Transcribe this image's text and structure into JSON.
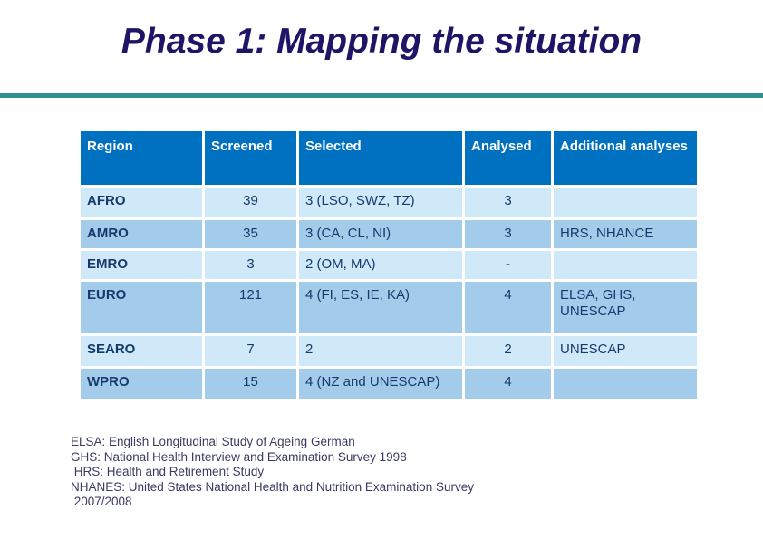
{
  "slide": {
    "title": "Phase 1: Mapping the situation"
  },
  "colors": {
    "title_navy": "#1d1667",
    "divider_teal": "#2e9191",
    "header_blue": "#0070c0",
    "header_text": "#ffffff",
    "row_light": "#cfe9f9",
    "row_dark": "#a2cce9",
    "body_text": "#173a6d",
    "footnote_text": "#3a3a63"
  },
  "table": {
    "headers": [
      "Region",
      "Screened",
      "Selected",
      "Analysed",
      "Additional analyses"
    ],
    "rows": [
      {
        "region": "AFRO",
        "screened": "39",
        "selected": "3 (LSO, SWZ, TZ)",
        "analysed": "3",
        "additional": ""
      },
      {
        "region": "AMRO",
        "screened": "35",
        "selected": "3 (CA, CL, NI)",
        "analysed": "3",
        "additional": "HRS, NHANCE"
      },
      {
        "region": "EMRO",
        "screened": "3",
        "selected": "2 (OM, MA)",
        "analysed": "-",
        "additional": ""
      },
      {
        "region": "EURO",
        "screened": "121",
        "selected": "4 (FI, ES, IE, KA)",
        "analysed": "4",
        "additional": "ELSA, GHS, UNESCAP"
      },
      {
        "region": "SEARO",
        "screened": "7",
        "selected": "2",
        "analysed": "2",
        "additional": "UNESCAP"
      },
      {
        "region": "WPRO",
        "screened": "15",
        "selected": "4 (NZ and UNESCAP)",
        "analysed": "4",
        "additional": ""
      }
    ]
  },
  "footnotes": {
    "lines": [
      "ELSA: English Longitudinal Study of Ageing German",
      "GHS: National Health Interview and Examination Survey 1998",
      " HRS: Health and Retirement Study",
      "NHANES: United States National Health and Nutrition Examination Survey",
      " 2007/2008"
    ]
  }
}
